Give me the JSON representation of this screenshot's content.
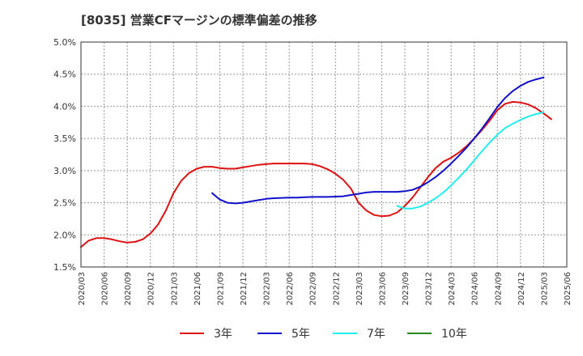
{
  "title": "[8035]  営業CFマージンの標準偏差の推移",
  "chart_data": {
    "type": "line",
    "title": "[8035]  営業CFマージンの標準偏差の推移",
    "xlabel": "",
    "ylabel": "",
    "x": [
      "2020/03",
      "2020/06",
      "2020/09",
      "2020/12",
      "2021/03",
      "2021/06",
      "2021/09",
      "2021/12",
      "2022/03",
      "2022/06",
      "2022/09",
      "2022/12",
      "2023/03",
      "2023/06",
      "2023/09",
      "2023/12",
      "2024/03",
      "2024/06",
      "2024/09",
      "2024/12",
      "2025/03",
      "2025/06"
    ],
    "y_ticks": [
      "1.5%",
      "2.0%",
      "2.5%",
      "3.0%",
      "3.5%",
      "4.0%",
      "4.5%",
      "5.0%"
    ],
    "ylim": [
      1.5,
      5.0
    ],
    "grid": true,
    "legend_position": "bottom",
    "series": [
      {
        "name": "3年",
        "color": "#dd1111",
        "points": [
          [
            0,
            1.81
          ],
          [
            0.33,
            1.91
          ],
          [
            0.67,
            1.95
          ],
          [
            1,
            1.95
          ],
          [
            1.33,
            1.93
          ],
          [
            1.67,
            1.9
          ],
          [
            2,
            1.88
          ],
          [
            2.33,
            1.89
          ],
          [
            2.67,
            1.93
          ],
          [
            3,
            2.02
          ],
          [
            3.33,
            2.16
          ],
          [
            3.67,
            2.38
          ],
          [
            4,
            2.65
          ],
          [
            4.33,
            2.84
          ],
          [
            4.67,
            2.96
          ],
          [
            5,
            3.03
          ],
          [
            5.33,
            3.06
          ],
          [
            5.67,
            3.06
          ],
          [
            6,
            3.04
          ],
          [
            6.33,
            3.03
          ],
          [
            6.67,
            3.03
          ],
          [
            7,
            3.05
          ],
          [
            7.33,
            3.07
          ],
          [
            7.67,
            3.09
          ],
          [
            8,
            3.1
          ],
          [
            8.33,
            3.11
          ],
          [
            8.67,
            3.11
          ],
          [
            9,
            3.11
          ],
          [
            9.33,
            3.11
          ],
          [
            9.67,
            3.11
          ],
          [
            10,
            3.1
          ],
          [
            10.33,
            3.07
          ],
          [
            10.67,
            3.02
          ],
          [
            11,
            2.95
          ],
          [
            11.33,
            2.86
          ],
          [
            11.67,
            2.72
          ],
          [
            12,
            2.5
          ],
          [
            12.33,
            2.38
          ],
          [
            12.67,
            2.31
          ],
          [
            13,
            2.29
          ],
          [
            13.33,
            2.3
          ],
          [
            13.67,
            2.35
          ],
          [
            14,
            2.45
          ],
          [
            14.33,
            2.58
          ],
          [
            14.67,
            2.74
          ],
          [
            15,
            2.9
          ],
          [
            15.33,
            3.04
          ],
          [
            15.67,
            3.14
          ],
          [
            16,
            3.2
          ],
          [
            16.33,
            3.28
          ],
          [
            16.67,
            3.38
          ],
          [
            17,
            3.5
          ],
          [
            17.33,
            3.63
          ],
          [
            17.67,
            3.78
          ],
          [
            18,
            3.94
          ],
          [
            18.33,
            4.04
          ],
          [
            18.67,
            4.07
          ],
          [
            19,
            4.06
          ],
          [
            19.33,
            4.03
          ],
          [
            19.67,
            3.97
          ],
          [
            20,
            3.89
          ],
          [
            20.33,
            3.8
          ]
        ]
      },
      {
        "name": "5年",
        "color": "#1111cc",
        "points": [
          [
            5.67,
            2.65
          ],
          [
            6,
            2.55
          ],
          [
            6.33,
            2.5
          ],
          [
            6.67,
            2.49
          ],
          [
            7,
            2.5
          ],
          [
            7.33,
            2.52
          ],
          [
            7.67,
            2.54
          ],
          [
            8,
            2.56
          ],
          [
            8.33,
            2.57
          ],
          [
            8.67,
            2.575
          ],
          [
            9,
            2.58
          ],
          [
            9.33,
            2.58
          ],
          [
            9.67,
            2.585
          ],
          [
            10,
            2.59
          ],
          [
            10.33,
            2.59
          ],
          [
            10.67,
            2.59
          ],
          [
            11,
            2.595
          ],
          [
            11.33,
            2.6
          ],
          [
            11.67,
            2.62
          ],
          [
            12,
            2.64
          ],
          [
            12.33,
            2.66
          ],
          [
            12.67,
            2.67
          ],
          [
            13,
            2.67
          ],
          [
            13.33,
            2.67
          ],
          [
            13.67,
            2.67
          ],
          [
            14,
            2.68
          ],
          [
            14.33,
            2.7
          ],
          [
            14.67,
            2.75
          ],
          [
            15,
            2.82
          ],
          [
            15.33,
            2.9
          ],
          [
            15.67,
            3.0
          ],
          [
            16,
            3.11
          ],
          [
            16.33,
            3.23
          ],
          [
            16.67,
            3.36
          ],
          [
            17,
            3.5
          ],
          [
            17.33,
            3.65
          ],
          [
            17.67,
            3.82
          ],
          [
            18,
            3.99
          ],
          [
            18.33,
            4.13
          ],
          [
            18.67,
            4.24
          ],
          [
            19,
            4.32
          ],
          [
            19.33,
            4.38
          ],
          [
            19.67,
            4.42
          ],
          [
            20,
            4.45
          ]
        ]
      },
      {
        "name": "7年",
        "color": "#22eeee",
        "points": [
          [
            13.67,
            2.45
          ],
          [
            14,
            2.41
          ],
          [
            14.33,
            2.41
          ],
          [
            14.67,
            2.44
          ],
          [
            15,
            2.5
          ],
          [
            15.33,
            2.57
          ],
          [
            15.67,
            2.66
          ],
          [
            16,
            2.77
          ],
          [
            16.33,
            2.89
          ],
          [
            16.67,
            3.02
          ],
          [
            17,
            3.16
          ],
          [
            17.33,
            3.3
          ],
          [
            17.67,
            3.44
          ],
          [
            18,
            3.56
          ],
          [
            18.33,
            3.66
          ],
          [
            18.67,
            3.73
          ],
          [
            19,
            3.79
          ],
          [
            19.33,
            3.84
          ],
          [
            19.67,
            3.88
          ],
          [
            20,
            3.91
          ]
        ]
      },
      {
        "name": "10年",
        "color": "#228822",
        "points": []
      }
    ]
  }
}
